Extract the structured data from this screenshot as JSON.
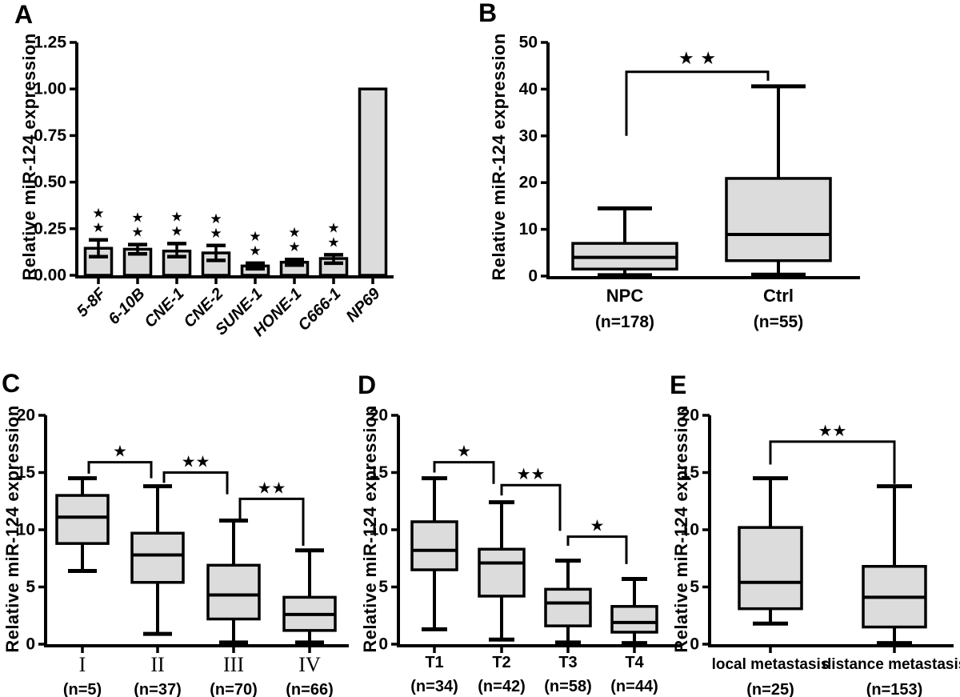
{
  "figure": {
    "background": "#ffffff",
    "line_color": "#000000",
    "box_fill": "#dcdcdc",
    "y_axis_title": "Relative miR-124 expression"
  },
  "chart_data": [
    {
      "panel_label": "A",
      "type": "bar",
      "ylabel": "Relative miR-124 expression",
      "xlabel": "",
      "ylim": [
        0,
        1.25
      ],
      "ytick_values": [
        0,
        0.25,
        0.5,
        0.75,
        1.0,
        1.25
      ],
      "ytick_labels": [
        "0.00",
        "0.25",
        "0.50",
        "0.75",
        "1.00",
        "1.25"
      ],
      "categories": [
        "5-8F",
        "6-10B",
        "CNE-1",
        "CNE-2",
        "SUNE-1",
        "HONE-1",
        "C666-1",
        "NP69"
      ],
      "values": [
        0.145,
        0.14,
        0.13,
        0.12,
        0.05,
        0.07,
        0.09,
        1.0
      ],
      "error_low": [
        0.1,
        0.115,
        0.1,
        0.08,
        0.035,
        0.055,
        0.065,
        null
      ],
      "error_high": [
        0.19,
        0.165,
        0.17,
        0.16,
        0.065,
        0.085,
        0.11,
        null
      ],
      "significance": [
        "★★",
        "★★",
        "★★",
        "★★",
        "★★",
        "★★",
        "★★",
        ""
      ]
    },
    {
      "panel_label": "B",
      "type": "box",
      "ylabel": "Relative miR-124 expression",
      "xlabel": "",
      "ylim": [
        0,
        50
      ],
      "ytick_values": [
        0,
        10,
        20,
        30,
        40,
        50
      ],
      "ytick_labels": [
        "0",
        "10",
        "20",
        "30",
        "40",
        "50"
      ],
      "boxes": [
        {
          "category": "NPC",
          "n_label": "(n=178)",
          "whisker_low": 0.2,
          "q1": 1.5,
          "median": 4.0,
          "q3": 7.0,
          "whisker_high": 14.5
        },
        {
          "category": "Ctrl",
          "n_label": "(n=55)",
          "whisker_low": 0.3,
          "q1": 3.3,
          "median": 8.9,
          "q3": 20.9,
          "whisker_high": 40.6
        }
      ],
      "brackets": [
        {
          "from": 0,
          "to": 1,
          "y": 43.7,
          "left_end": 30.0,
          "right_end": 41.8,
          "stars": "★ ★"
        }
      ]
    },
    {
      "panel_label": "C",
      "type": "box",
      "ylabel": "Relative miR-124 expression",
      "xlabel": "",
      "ylim": [
        0,
        20
      ],
      "ytick_values": [
        0,
        5,
        10,
        15,
        20
      ],
      "ytick_labels": [
        "0",
        "5",
        "10",
        "15",
        "20"
      ],
      "boxes": [
        {
          "category": "I",
          "n_label": "(n=5)",
          "whisker_low": 6.4,
          "q1": 8.8,
          "median": 11.1,
          "q3": 13.0,
          "whisker_high": 14.5
        },
        {
          "category": "II",
          "n_label": "(n=37)",
          "whisker_low": 0.9,
          "q1": 5.4,
          "median": 7.8,
          "q3": 9.7,
          "whisker_high": 13.8
        },
        {
          "category": "III",
          "n_label": "(n=70)",
          "whisker_low": 0.15,
          "q1": 2.2,
          "median": 4.3,
          "q3": 6.9,
          "whisker_high": 10.8
        },
        {
          "category": "IV",
          "n_label": "(n=66)",
          "whisker_low": 0.15,
          "q1": 1.2,
          "median": 2.6,
          "q3": 4.1,
          "whisker_high": 8.2
        }
      ],
      "brackets": [
        {
          "from": 0,
          "to": 1,
          "y": 15.9,
          "left_end": 14.9,
          "right_end": 14.5,
          "stars": "★"
        },
        {
          "from": 1,
          "to": 2,
          "y": 15.0,
          "left_end": 14.1,
          "right_end": 13.1,
          "stars": "★★"
        },
        {
          "from": 2,
          "to": 3,
          "y": 12.7,
          "left_end": 10.9,
          "right_end": 8.6,
          "stars": "★★"
        }
      ]
    },
    {
      "panel_label": "D",
      "type": "box",
      "ylabel": "Relative miR-124 expression",
      "xlabel": "",
      "ylim": [
        0,
        20
      ],
      "ytick_values": [
        0,
        5,
        10,
        15,
        20
      ],
      "ytick_labels": [
        "0",
        "5",
        "10",
        "15",
        "20"
      ],
      "boxes": [
        {
          "category": "T1",
          "n_label": "(n=34)",
          "whisker_low": 1.3,
          "q1": 6.5,
          "median": 8.2,
          "q3": 10.7,
          "whisker_high": 14.5
        },
        {
          "category": "T2",
          "n_label": "(n=42)",
          "whisker_low": 0.4,
          "q1": 4.2,
          "median": 7.1,
          "q3": 8.3,
          "whisker_high": 12.4
        },
        {
          "category": "T3",
          "n_label": "(n=58)",
          "whisker_low": 0.15,
          "q1": 1.6,
          "median": 3.6,
          "q3": 4.8,
          "whisker_high": 7.3
        },
        {
          "category": "T4",
          "n_label": "(n=44)",
          "whisker_low": 0.1,
          "q1": 1.05,
          "median": 1.9,
          "q3": 3.3,
          "whisker_high": 5.7
        }
      ],
      "brackets": [
        {
          "from": 0,
          "to": 1,
          "y": 15.9,
          "left_end": 15.0,
          "right_end": 14.0,
          "stars": "★"
        },
        {
          "from": 1,
          "to": 2,
          "y": 13.9,
          "left_end": 13.0,
          "right_end": 9.9,
          "stars": "★★"
        },
        {
          "from": 2,
          "to": 3,
          "y": 9.4,
          "left_end": 8.6,
          "right_end": 7.0,
          "stars": "★"
        }
      ]
    },
    {
      "panel_label": "E",
      "type": "box",
      "ylabel": "Relative miR-124 expression",
      "xlabel": "",
      "ylim": [
        0,
        20
      ],
      "ytick_values": [
        0,
        5,
        10,
        15,
        20
      ],
      "ytick_labels": [
        "0",
        "5",
        "10",
        "15",
        "20"
      ],
      "boxes": [
        {
          "category": "local metastasis",
          "n_label": "(n=25)",
          "whisker_low": 1.8,
          "q1": 3.1,
          "median": 5.4,
          "q3": 10.2,
          "whisker_high": 14.5
        },
        {
          "category": "distance metastasis",
          "n_label": "(n=153)",
          "whisker_low": 0.1,
          "q1": 1.5,
          "median": 4.1,
          "q3": 6.8,
          "whisker_high": 13.8
        }
      ],
      "brackets": [
        {
          "from": 0,
          "to": 1,
          "y": 17.7,
          "left_end": 15.7,
          "right_end": 14.0,
          "stars": "★★"
        }
      ]
    }
  ]
}
